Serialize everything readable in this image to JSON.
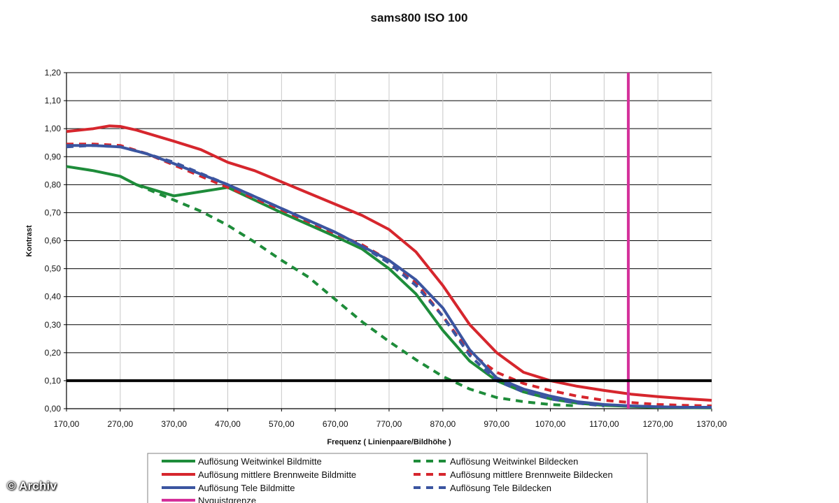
{
  "watermark": "© Archiv",
  "chart_data": {
    "type": "line",
    "title": "sams800   ISO 100",
    "xlabel": "Frequenz ( Linienpaare/Bildhöhe )",
    "ylabel": "Kontrast",
    "xlim": [
      170,
      1370
    ],
    "ylim": [
      0,
      1.2
    ],
    "xticks": [
      "170,00",
      "270,00",
      "370,00",
      "470,00",
      "570,00",
      "670,00",
      "770,00",
      "870,00",
      "970,00",
      "1070,00",
      "1170,00",
      "1270,00",
      "1370,00"
    ],
    "yticks": [
      "0,00",
      "0,10",
      "0,20",
      "0,30",
      "0,40",
      "0,50",
      "0,60",
      "0,70",
      "0,80",
      "0,90",
      "1,00",
      "1,10",
      "1,20"
    ],
    "grid": true,
    "legend_position": "bottom",
    "series": [
      {
        "name": "Auflösung Weitwinkel Bildmitte",
        "color": "#1e8c3a",
        "dash": false,
        "x": [
          170,
          220,
          270,
          300,
          370,
          470,
          570,
          670,
          720,
          770,
          820,
          870,
          920,
          970,
          1020,
          1070,
          1120,
          1170,
          1220,
          1270,
          1320,
          1370
        ],
        "y": [
          0.865,
          0.85,
          0.83,
          0.8,
          0.76,
          0.79,
          0.7,
          0.615,
          0.57,
          0.5,
          0.41,
          0.28,
          0.17,
          0.1,
          0.06,
          0.035,
          0.02,
          0.012,
          0.008,
          0.005,
          0.004,
          0.003
        ]
      },
      {
        "name": "Auflösung Weitwinkel Bildecken",
        "color": "#1e8c3a",
        "dash": true,
        "x": [
          300,
          370,
          420,
          470,
          520,
          570,
          620,
          670,
          720,
          770,
          820,
          870,
          920,
          970,
          1020,
          1070,
          1120
        ],
        "y": [
          0.8,
          0.745,
          0.705,
          0.655,
          0.595,
          0.53,
          0.47,
          0.39,
          0.31,
          0.24,
          0.175,
          0.115,
          0.07,
          0.04,
          0.025,
          0.015,
          0.01
        ]
      },
      {
        "name": "Auflösung mittlere Brennweite Bildmitte",
        "color": "#d6262d",
        "dash": false,
        "x": [
          170,
          220,
          250,
          270,
          300,
          370,
          420,
          470,
          520,
          570,
          620,
          670,
          720,
          770,
          820,
          870,
          920,
          970,
          1020,
          1070,
          1120,
          1170,
          1220,
          1270,
          1320,
          1370
        ],
        "y": [
          0.99,
          1.0,
          1.01,
          1.008,
          0.995,
          0.955,
          0.925,
          0.88,
          0.85,
          0.81,
          0.77,
          0.73,
          0.69,
          0.64,
          0.56,
          0.44,
          0.3,
          0.2,
          0.13,
          0.1,
          0.08,
          0.065,
          0.052,
          0.043,
          0.036,
          0.03
        ]
      },
      {
        "name": "Auflösung mittlere Brennweite Bildecken",
        "color": "#d6262d",
        "dash": true,
        "x": [
          170,
          220,
          270,
          320,
          370,
          470,
          570,
          670,
          720,
          770,
          820,
          870,
          920,
          970,
          1020,
          1070,
          1120,
          1170,
          1220,
          1270,
          1320,
          1370
        ],
        "y": [
          0.945,
          0.945,
          0.94,
          0.91,
          0.87,
          0.79,
          0.71,
          0.625,
          0.585,
          0.53,
          0.45,
          0.33,
          0.2,
          0.13,
          0.09,
          0.065,
          0.045,
          0.03,
          0.022,
          0.015,
          0.012,
          0.01
        ]
      },
      {
        "name": "Auflösung Tele Bildmitte",
        "color": "#3b55a0",
        "dash": false,
        "x": [
          170,
          220,
          270,
          320,
          370,
          470,
          570,
          670,
          720,
          770,
          820,
          870,
          920,
          970,
          1020,
          1070,
          1120,
          1170,
          1220,
          1270,
          1320,
          1370
        ],
        "y": [
          0.94,
          0.94,
          0.935,
          0.91,
          0.875,
          0.8,
          0.715,
          0.63,
          0.58,
          0.53,
          0.46,
          0.36,
          0.21,
          0.11,
          0.07,
          0.045,
          0.025,
          0.015,
          0.01,
          0.007,
          0.005,
          0.005
        ]
      },
      {
        "name": "Auflösung Tele Bildecken",
        "color": "#3b55a0",
        "dash": true,
        "x": [
          170,
          220,
          270,
          320,
          370,
          470,
          570,
          670,
          720,
          770,
          820,
          870,
          920,
          970,
          1020,
          1070,
          1120,
          1170
        ],
        "y": [
          0.935,
          0.94,
          0.935,
          0.91,
          0.88,
          0.8,
          0.715,
          0.63,
          0.58,
          0.52,
          0.44,
          0.33,
          0.19,
          0.1,
          0.06,
          0.035,
          0.02,
          0.01
        ]
      },
      {
        "name": "Nyquistgrenze",
        "color": "#d4309a",
        "dash": false,
        "x": [
          1215,
          1215
        ],
        "y": [
          0,
          1.2
        ]
      }
    ],
    "reference_line": {
      "y": 0.1,
      "color": "#000000"
    }
  }
}
